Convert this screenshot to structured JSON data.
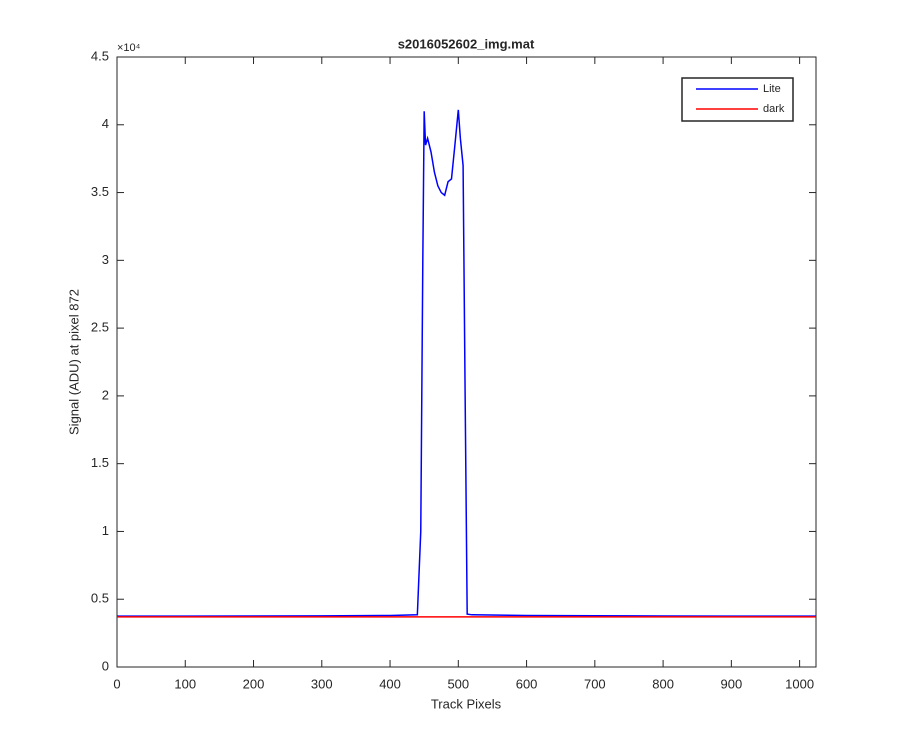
{
  "chart_data": {
    "type": "line",
    "title": "s2016052602_img.mat",
    "x_label": "Track Pixels",
    "y_label": "Signal (ADU) at pixel 872",
    "y_exponent": "×10⁴",
    "xlim": [
      0,
      1024
    ],
    "xticks": [
      0,
      100,
      200,
      300,
      400,
      500,
      600,
      700,
      800,
      900,
      1000
    ],
    "ylim": [
      0,
      45000
    ],
    "yticks": [
      {
        "value": 0,
        "label": "0"
      },
      {
        "value": 5000,
        "label": "0.5"
      },
      {
        "value": 10000,
        "label": "1"
      },
      {
        "value": 15000,
        "label": "1.5"
      },
      {
        "value": 20000,
        "label": "2"
      },
      {
        "value": 25000,
        "label": "2.5"
      },
      {
        "value": 30000,
        "label": "3"
      },
      {
        "value": 35000,
        "label": "3.5"
      },
      {
        "value": 40000,
        "label": "4"
      },
      {
        "value": 45000,
        "label": "4.5"
      }
    ],
    "grid": false,
    "legend": "top-right",
    "series": [
      {
        "name": "Lite",
        "color": "#0000ff",
        "x": [
          0,
          100,
          200,
          300,
          400,
          440,
          445,
          448,
          450,
          452,
          455,
          460,
          465,
          470,
          475,
          480,
          485,
          490,
          495,
          500,
          503,
          507,
          510,
          513,
          520,
          600,
          700,
          800,
          900,
          1024
        ],
        "values": [
          3750,
          3750,
          3760,
          3770,
          3800,
          3850,
          10000,
          30000,
          41000,
          38500,
          39000,
          38000,
          36500,
          35500,
          35000,
          34800,
          35800,
          36000,
          38500,
          41100,
          39000,
          37000,
          20000,
          3900,
          3850,
          3800,
          3780,
          3760,
          3750,
          3750
        ]
      },
      {
        "name": "dark",
        "color": "#ff0000",
        "x": [
          0,
          1024
        ],
        "values": [
          3700,
          3700
        ]
      }
    ]
  }
}
